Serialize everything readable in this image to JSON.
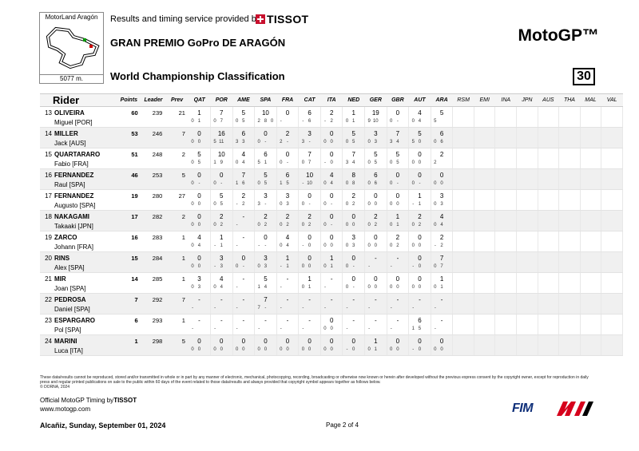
{
  "circuit": {
    "name": "MotorLand Aragón",
    "length": "5077 m."
  },
  "header": {
    "provider_text": "Results and timing service provided by",
    "provider_brand": "TISSOT",
    "event": "GRAN PREMIO GoPro DE ARAGÓN",
    "brand": "MotoGP™",
    "title": "World Championship Classification",
    "page_number": "30"
  },
  "columns": {
    "rider": "Rider",
    "points": "Points",
    "leader": "Leader",
    "prev": "Prev",
    "races": [
      "QAT",
      "POR",
      "AME",
      "SPA",
      "FRA",
      "CAT",
      "ITA",
      "NED",
      "GER",
      "GBR",
      "AUT",
      "ARA"
    ],
    "future": [
      "RSM",
      "EMI",
      "INA",
      "JPN",
      "AUS",
      "THA",
      "MAL",
      "VAL"
    ]
  },
  "rows": [
    {
      "pos": "13",
      "surname": "OLIVEIRA",
      "first": "Miguel [POR]",
      "points": "60",
      "leader": "239",
      "prev": "21",
      "races": [
        [
          "1",
          [
            "0",
            "1",
            ""
          ]
        ],
        [
          "7",
          [
            "0",
            "7",
            ""
          ]
        ],
        [
          "5",
          [
            "0",
            "5",
            ""
          ]
        ],
        [
          "10",
          [
            "2",
            "8",
            "0"
          ]
        ],
        [
          "0",
          [
            "-",
            "",
            ""
          ]
        ],
        [
          "6",
          [
            "-",
            "6",
            ""
          ]
        ],
        [
          "2",
          [
            "-",
            "2",
            ""
          ]
        ],
        [
          "1",
          [
            "0",
            "1",
            ""
          ]
        ],
        [
          "19",
          [
            "9",
            "10",
            ""
          ]
        ],
        [
          "0",
          [
            "0",
            "-",
            ""
          ]
        ],
        [
          "4",
          [
            "0",
            "4",
            ""
          ]
        ],
        [
          "5",
          [
            "5",
            "",
            ""
          ]
        ]
      ]
    },
    {
      "pos": "14",
      "surname": "MILLER",
      "first": "Jack [AUS]",
      "points": "53",
      "leader": "246",
      "prev": "7",
      "races": [
        [
          "0",
          [
            "0",
            "0",
            ""
          ]
        ],
        [
          "16",
          [
            "5",
            "11",
            ""
          ]
        ],
        [
          "6",
          [
            "3",
            "3",
            ""
          ]
        ],
        [
          "0",
          [
            "0",
            "-",
            ""
          ]
        ],
        [
          "2",
          [
            "2",
            "-",
            ""
          ]
        ],
        [
          "3",
          [
            "3",
            "-",
            ""
          ]
        ],
        [
          "0",
          [
            "0",
            "0",
            ""
          ]
        ],
        [
          "5",
          [
            "0",
            "5",
            ""
          ]
        ],
        [
          "3",
          [
            "0",
            "3",
            ""
          ]
        ],
        [
          "7",
          [
            "3",
            "4",
            ""
          ]
        ],
        [
          "5",
          [
            "5",
            "0",
            ""
          ]
        ],
        [
          "6",
          [
            "0",
            "6",
            ""
          ]
        ]
      ]
    },
    {
      "pos": "15",
      "surname": "QUARTARARO",
      "first": "Fabio [FRA]",
      "points": "51",
      "leader": "248",
      "prev": "2",
      "races": [
        [
          "5",
          [
            "0",
            "5",
            ""
          ]
        ],
        [
          "10",
          [
            "1",
            "9",
            ""
          ]
        ],
        [
          "4",
          [
            "0",
            "4",
            ""
          ]
        ],
        [
          "6",
          [
            "5",
            "1",
            ""
          ]
        ],
        [
          "0",
          [
            "0",
            "-",
            ""
          ]
        ],
        [
          "7",
          [
            "0",
            "7",
            ""
          ]
        ],
        [
          "0",
          [
            "-",
            "0",
            ""
          ]
        ],
        [
          "7",
          [
            "3",
            "4",
            ""
          ]
        ],
        [
          "5",
          [
            "0",
            "5",
            ""
          ]
        ],
        [
          "5",
          [
            "0",
            "5",
            ""
          ]
        ],
        [
          "0",
          [
            "0",
            "0",
            ""
          ]
        ],
        [
          "2",
          [
            "2",
            "",
            ""
          ]
        ]
      ]
    },
    {
      "pos": "16",
      "surname": "FERNANDEZ",
      "first": "Raul [SPA]",
      "points": "46",
      "leader": "253",
      "prev": "5",
      "races": [
        [
          "0",
          [
            "0",
            "-",
            ""
          ]
        ],
        [
          "0",
          [
            "0",
            "-",
            ""
          ]
        ],
        [
          "7",
          [
            "1",
            "6",
            ""
          ]
        ],
        [
          "5",
          [
            "0",
            "5",
            ""
          ]
        ],
        [
          "6",
          [
            "1",
            "5",
            ""
          ]
        ],
        [
          "10",
          [
            "-",
            "10",
            ""
          ]
        ],
        [
          "4",
          [
            "0",
            "4",
            ""
          ]
        ],
        [
          "8",
          [
            "0",
            "8",
            ""
          ]
        ],
        [
          "6",
          [
            "0",
            "6",
            ""
          ]
        ],
        [
          "0",
          [
            "0",
            "-",
            ""
          ]
        ],
        [
          "0",
          [
            "0",
            "-",
            ""
          ]
        ],
        [
          "0",
          [
            "0",
            "0",
            ""
          ]
        ]
      ]
    },
    {
      "pos": "17",
      "surname": "FERNANDEZ",
      "first": "Augusto [SPA]",
      "points": "19",
      "leader": "280",
      "prev": "27",
      "races": [
        [
          "0",
          [
            "0",
            "0",
            ""
          ]
        ],
        [
          "5",
          [
            "0",
            "5",
            ""
          ]
        ],
        [
          "2",
          [
            "-",
            "2",
            ""
          ]
        ],
        [
          "3",
          [
            "3",
            "-",
            ""
          ]
        ],
        [
          "3",
          [
            "0",
            "3",
            ""
          ]
        ],
        [
          "0",
          [
            "0",
            "-",
            ""
          ]
        ],
        [
          "0",
          [
            "0",
            "-",
            ""
          ]
        ],
        [
          "2",
          [
            "0",
            "2",
            ""
          ]
        ],
        [
          "0",
          [
            "0",
            "0",
            ""
          ]
        ],
        [
          "0",
          [
            "0",
            "0",
            ""
          ]
        ],
        [
          "1",
          [
            "-",
            "1",
            ""
          ]
        ],
        [
          "3",
          [
            "0",
            "3",
            ""
          ]
        ]
      ]
    },
    {
      "pos": "18",
      "surname": "NAKAGAMI",
      "first": "Takaaki [JPN]",
      "points": "17",
      "leader": "282",
      "prev": "2",
      "races": [
        [
          "0",
          [
            "0",
            "0",
            ""
          ]
        ],
        [
          "2",
          [
            "0",
            "2",
            ""
          ]
        ],
        [
          "-",
          [
            "-",
            "",
            ""
          ]
        ],
        [
          "2",
          [
            "0",
            "2",
            ""
          ]
        ],
        [
          "2",
          [
            "0",
            "2",
            ""
          ]
        ],
        [
          "2",
          [
            "0",
            "2",
            ""
          ]
        ],
        [
          "0",
          [
            "0",
            "-",
            ""
          ]
        ],
        [
          "0",
          [
            "0",
            "0",
            ""
          ]
        ],
        [
          "2",
          [
            "0",
            "2",
            ""
          ]
        ],
        [
          "1",
          [
            "0",
            "1",
            ""
          ]
        ],
        [
          "2",
          [
            "0",
            "2",
            ""
          ]
        ],
        [
          "4",
          [
            "0",
            "4",
            ""
          ]
        ]
      ]
    },
    {
      "pos": "19",
      "surname": "ZARCO",
      "first": "Johann [FRA]",
      "points": "16",
      "leader": "283",
      "prev": "1",
      "races": [
        [
          "4",
          [
            "0",
            "4",
            ""
          ]
        ],
        [
          "1",
          [
            "-",
            "1",
            ""
          ]
        ],
        [
          "-",
          [
            "-",
            "",
            ""
          ]
        ],
        [
          "0",
          [
            "-",
            "-",
            ""
          ]
        ],
        [
          "4",
          [
            "0",
            "4",
            ""
          ]
        ],
        [
          "0",
          [
            "-",
            "0",
            ""
          ]
        ],
        [
          "0",
          [
            "0",
            "0",
            ""
          ]
        ],
        [
          "3",
          [
            "0",
            "3",
            ""
          ]
        ],
        [
          "0",
          [
            "0",
            "0",
            ""
          ]
        ],
        [
          "2",
          [
            "0",
            "2",
            ""
          ]
        ],
        [
          "0",
          [
            "0",
            "0",
            ""
          ]
        ],
        [
          "2",
          [
            "-",
            "2",
            ""
          ]
        ]
      ]
    },
    {
      "pos": "20",
      "surname": "RINS",
      "first": "Alex [SPA]",
      "points": "15",
      "leader": "284",
      "prev": "1",
      "races": [
        [
          "0",
          [
            "0",
            "0",
            ""
          ]
        ],
        [
          "3",
          [
            "-",
            "3",
            ""
          ]
        ],
        [
          "0",
          [
            "0",
            "-",
            ""
          ]
        ],
        [
          "3",
          [
            "0",
            "3",
            ""
          ]
        ],
        [
          "1",
          [
            "-",
            "1",
            ""
          ]
        ],
        [
          "0",
          [
            "0",
            "0",
            ""
          ]
        ],
        [
          "1",
          [
            "0",
            "1",
            ""
          ]
        ],
        [
          "0",
          [
            "0",
            "-",
            ""
          ]
        ],
        [
          "-",
          [
            "-",
            "",
            ""
          ]
        ],
        [
          "-",
          [
            "-",
            "",
            ""
          ]
        ],
        [
          "0",
          [
            "-",
            "0",
            ""
          ]
        ],
        [
          "7",
          [
            "0",
            "7",
            ""
          ]
        ]
      ]
    },
    {
      "pos": "21",
      "surname": "MIR",
      "first": "Joan [SPA]",
      "points": "14",
      "leader": "285",
      "prev": "1",
      "races": [
        [
          "3",
          [
            "0",
            "3",
            ""
          ]
        ],
        [
          "4",
          [
            "0",
            "4",
            ""
          ]
        ],
        [
          "-",
          [
            "-",
            "",
            ""
          ]
        ],
        [
          "5",
          [
            "1",
            "4",
            ""
          ]
        ],
        [
          "-",
          [
            "-",
            "",
            ""
          ]
        ],
        [
          "1",
          [
            "0",
            "1",
            ""
          ]
        ],
        [
          "-",
          [
            "-",
            "",
            ""
          ]
        ],
        [
          "0",
          [
            "0",
            "-",
            ""
          ]
        ],
        [
          "0",
          [
            "0",
            "0",
            ""
          ]
        ],
        [
          "0",
          [
            "0",
            "0",
            ""
          ]
        ],
        [
          "0",
          [
            "0",
            "0",
            ""
          ]
        ],
        [
          "1",
          [
            "0",
            "1",
            ""
          ]
        ]
      ]
    },
    {
      "pos": "22",
      "surname": "PEDROSA",
      "first": "Daniel [SPA]",
      "points": "7",
      "leader": "292",
      "prev": "7",
      "races": [
        [
          "-",
          [
            "-",
            "",
            ""
          ]
        ],
        [
          "-",
          [
            "-",
            "",
            ""
          ]
        ],
        [
          "-",
          [
            "-",
            "",
            ""
          ]
        ],
        [
          "7",
          [
            "7",
            "-",
            ""
          ]
        ],
        [
          "-",
          [
            "-",
            "",
            ""
          ]
        ],
        [
          "-",
          [
            "-",
            "",
            ""
          ]
        ],
        [
          "-",
          [
            "-",
            "",
            ""
          ]
        ],
        [
          "-",
          [
            "-",
            "",
            ""
          ]
        ],
        [
          "-",
          [
            "-",
            "",
            ""
          ]
        ],
        [
          "-",
          [
            "-",
            "",
            ""
          ]
        ],
        [
          "-",
          [
            "-",
            "",
            ""
          ]
        ],
        [
          "-",
          [
            "-",
            "",
            ""
          ]
        ]
      ]
    },
    {
      "pos": "23",
      "surname": "ESPARGARO",
      "first": "Pol [SPA]",
      "points": "6",
      "leader": "293",
      "prev": "1",
      "races": [
        [
          "-",
          [
            "-",
            "",
            ""
          ]
        ],
        [
          "-",
          [
            "-",
            "",
            ""
          ]
        ],
        [
          "-",
          [
            "-",
            "",
            ""
          ]
        ],
        [
          "-",
          [
            "-",
            "",
            ""
          ]
        ],
        [
          "-",
          [
            "-",
            "",
            ""
          ]
        ],
        [
          "-",
          [
            "-",
            "",
            ""
          ]
        ],
        [
          "0",
          [
            "0",
            "0",
            ""
          ]
        ],
        [
          "-",
          [
            "-",
            "",
            ""
          ]
        ],
        [
          "-",
          [
            "-",
            "",
            ""
          ]
        ],
        [
          "-",
          [
            "-",
            "",
            ""
          ]
        ],
        [
          "6",
          [
            "1",
            "5",
            ""
          ]
        ],
        [
          "-",
          [
            "-",
            "",
            ""
          ]
        ]
      ]
    },
    {
      "pos": "24",
      "surname": "MARINI",
      "first": "Luca [ITA]",
      "points": "1",
      "leader": "298",
      "prev": "5",
      "races": [
        [
          "0",
          [
            "0",
            "0",
            ""
          ]
        ],
        [
          "0",
          [
            "0",
            "0",
            ""
          ]
        ],
        [
          "0",
          [
            "0",
            "0",
            ""
          ]
        ],
        [
          "0",
          [
            "0",
            "0",
            ""
          ]
        ],
        [
          "0",
          [
            "0",
            "0",
            ""
          ]
        ],
        [
          "0",
          [
            "0",
            "0",
            ""
          ]
        ],
        [
          "0",
          [
            "0",
            "0",
            ""
          ]
        ],
        [
          "0",
          [
            "-",
            "0",
            ""
          ]
        ],
        [
          "1",
          [
            "0",
            "1",
            ""
          ]
        ],
        [
          "0",
          [
            "0",
            "0",
            ""
          ]
        ],
        [
          "0",
          [
            "-",
            "0",
            ""
          ]
        ],
        [
          "0",
          [
            "0",
            "0",
            ""
          ]
        ]
      ]
    }
  ],
  "footer": {
    "disclaimer": "These data/results cannot be reproduced, stored and/or transmitted in whole or in part by any manner of electronic, mechanical, photocopying, recording, broadcasting or otherwise now known or herein after developed without the previous express consent by the copyright owner, except for reproduction in daily press and regular printed publications on sale to the public within 60 days of the event related to those data/results and always provided that copyright symbol appears together as follows below.",
    "copyright": "© DORNA, 2024",
    "official_prefix": "Official MotoGP Timing by",
    "official_brand": "TISSOT",
    "website": "www.motogp.com",
    "place_date": "Alcañiz, Sunday, September 01, 2024",
    "page": "Page 2 of 4",
    "fim": "FIM"
  },
  "colors": {
    "tissot_red": "#c8102e",
    "fim_blue": "#10307a",
    "motogp_red": "#d6001c",
    "row_shade": "#f0f0f0"
  }
}
